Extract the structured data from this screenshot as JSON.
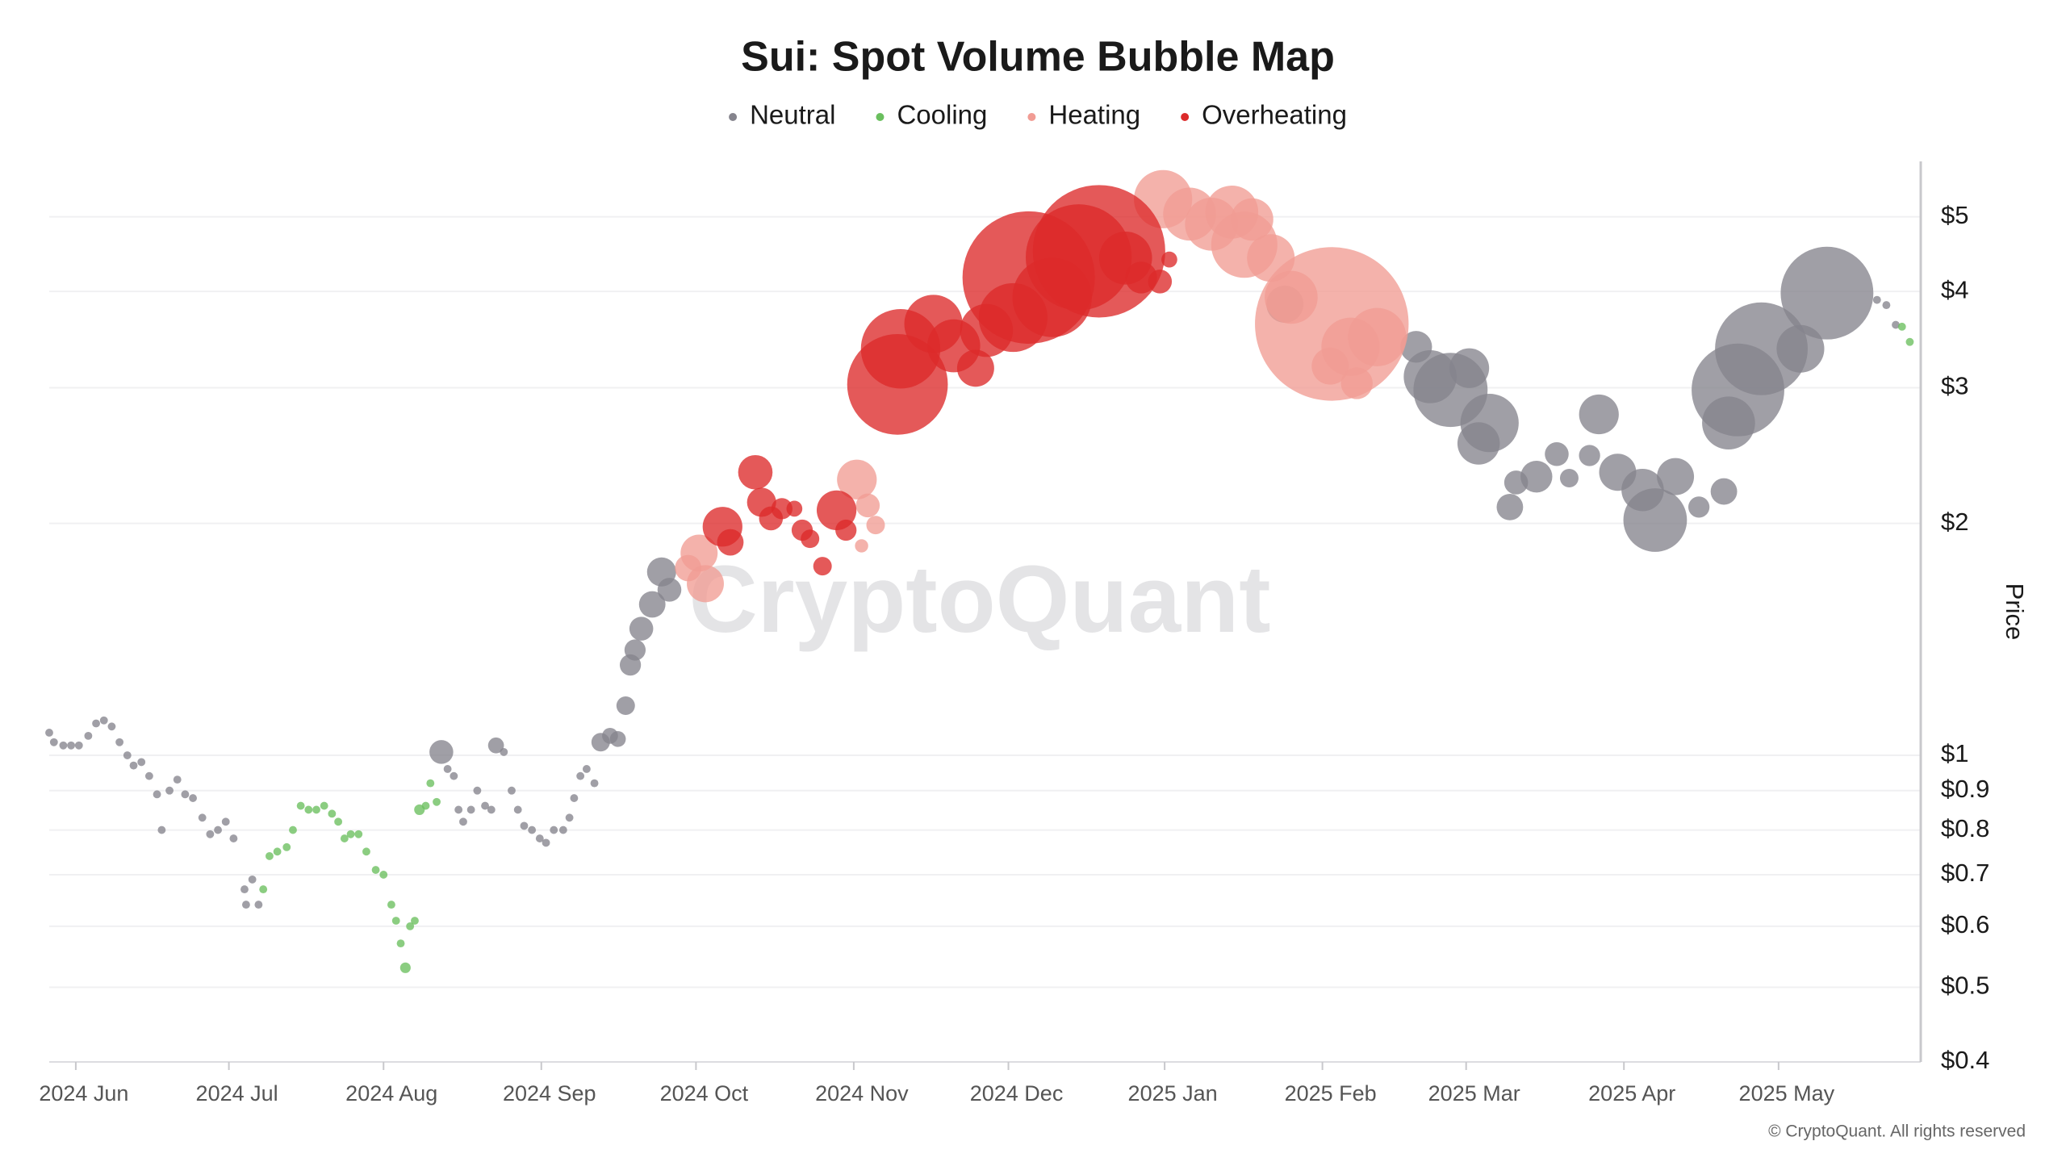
{
  "chart_data": {
    "type": "bubble",
    "title": "Sui: Spot Volume Bubble Map",
    "y_label": "Price",
    "watermark": "CryptoQuant",
    "copyright": "© CryptoQuant. All rights reserved",
    "log_scale": true,
    "grid": true,
    "legend": "top",
    "xlim": [
      -0.17,
      11.81
    ],
    "ylim": [
      0.4,
      5.9
    ],
    "xticks": [
      {
        "value": 0,
        "label": "2024 Jun"
      },
      {
        "value": 0.98,
        "label": "2024 Jul"
      },
      {
        "value": 1.97,
        "label": "2024 Aug"
      },
      {
        "value": 2.98,
        "label": "2024 Sep"
      },
      {
        "value": 3.97,
        "label": "2024 Oct"
      },
      {
        "value": 4.98,
        "label": "2024 Nov"
      },
      {
        "value": 5.97,
        "label": "2024 Dec"
      },
      {
        "value": 6.97,
        "label": "2025 Jan"
      },
      {
        "value": 7.98,
        "label": "2025 Feb"
      },
      {
        "value": 8.9,
        "label": "2025 Mar"
      },
      {
        "value": 9.91,
        "label": "2025 Apr"
      },
      {
        "value": 10.9,
        "label": "2025 May"
      }
    ],
    "yticks": [
      {
        "value": 0.4,
        "label": "$0.4"
      },
      {
        "value": 0.5,
        "label": "$0.5"
      },
      {
        "value": 0.6,
        "label": "$0.6"
      },
      {
        "value": 0.7,
        "label": "$0.7"
      },
      {
        "value": 0.8,
        "label": "$0.8"
      },
      {
        "value": 0.9,
        "label": "$0.9"
      },
      {
        "value": 1,
        "label": "$1"
      },
      {
        "value": 2,
        "label": "$2"
      },
      {
        "value": 3,
        "label": "$3"
      },
      {
        "value": 4,
        "label": "$4"
      },
      {
        "value": 5,
        "label": "$5"
      }
    ],
    "series": [
      {
        "name": "Neutral",
        "color": "#85848d",
        "x": [
          -0.17,
          -0.14,
          -0.08,
          -0.03,
          0.02,
          0.08,
          0.13,
          0.18,
          0.23,
          0.28,
          0.33,
          0.37,
          0.42,
          0.47,
          0.52,
          0.55,
          0.6,
          0.65,
          0.7,
          0.75,
          0.81,
          0.86,
          0.91,
          0.96,
          1.01,
          1.08,
          1.09,
          1.13,
          1.17,
          2.34,
          2.38,
          2.42,
          2.45,
          2.48,
          2.53,
          2.57,
          2.62,
          2.66,
          2.69,
          2.74,
          2.79,
          2.83,
          2.87,
          2.92,
          2.97,
          3.01,
          3.06,
          3.12,
          3.16,
          3.19,
          3.23,
          3.27,
          3.32,
          3.36,
          3.42,
          3.47,
          3.52,
          3.55,
          3.58,
          3.62,
          3.69,
          3.75,
          3.8,
          7.74,
          8.58,
          8.67,
          8.8,
          8.92,
          8.98,
          9.05,
          9.18,
          9.22,
          9.35,
          9.48,
          9.56,
          9.69,
          9.75,
          9.87,
          10.03,
          10.11,
          10.24,
          10.39,
          10.55,
          10.58,
          10.64,
          10.79,
          11.04,
          11.21,
          11.53,
          11.59,
          11.65
        ],
        "values": [
          1.07,
          1.04,
          1.03,
          1.03,
          1.03,
          1.06,
          1.1,
          1.11,
          1.09,
          1.04,
          1.0,
          0.97,
          0.98,
          0.94,
          0.89,
          0.8,
          0.9,
          0.93,
          0.89,
          0.88,
          0.83,
          0.79,
          0.8,
          0.82,
          0.78,
          0.67,
          0.64,
          0.69,
          0.64,
          1.01,
          0.96,
          0.94,
          0.85,
          0.82,
          0.85,
          0.9,
          0.86,
          0.85,
          1.03,
          1.01,
          0.9,
          0.85,
          0.81,
          0.8,
          0.78,
          0.77,
          0.8,
          0.8,
          0.83,
          0.88,
          0.94,
          0.96,
          0.92,
          1.04,
          1.06,
          1.05,
          1.16,
          1.31,
          1.37,
          1.46,
          1.57,
          1.73,
          1.64,
          3.85,
          3.39,
          3.1,
          2.98,
          3.18,
          2.54,
          2.7,
          2.1,
          2.26,
          2.3,
          2.46,
          2.29,
          2.45,
          2.77,
          2.33,
          2.21,
          2.02,
          2.3,
          2.1,
          2.2,
          2.7,
          2.98,
          3.37,
          3.37,
          3.98,
          3.9,
          3.84,
          3.62
        ],
        "sizes": [
          9,
          9,
          9,
          9,
          9,
          9,
          9,
          9,
          9,
          9,
          9,
          9,
          9,
          9,
          9,
          9,
          9,
          9,
          9,
          9,
          9,
          9,
          9,
          9,
          9,
          9,
          9,
          9,
          9,
          81,
          9,
          9,
          9,
          9,
          9,
          9,
          9,
          9,
          36,
          9,
          9,
          9,
          9,
          9,
          9,
          9,
          9,
          9,
          9,
          9,
          9,
          9,
          9,
          49,
          36,
          36,
          49,
          64,
          64,
          81,
          100,
          121,
          81,
          196,
          144,
          400,
          784,
          225,
          256,
          484,
          100,
          81,
          144,
          81,
          49,
          64,
          225,
          196,
          256,
          576,
          196,
          64,
          100,
          400,
          1225,
          1225,
          324,
          1225,
          9,
          9,
          9
        ]
      },
      {
        "name": "Cooling",
        "color": "#6abf5e",
        "x": [
          1.2,
          1.24,
          1.29,
          1.35,
          1.39,
          1.44,
          1.49,
          1.54,
          1.59,
          1.64,
          1.68,
          1.72,
          1.76,
          1.81,
          1.86,
          1.92,
          1.97,
          2.02,
          2.05,
          2.08,
          2.11,
          2.14,
          2.17,
          2.2,
          2.24,
          2.27,
          2.31,
          11.69,
          11.74
        ],
        "values": [
          0.67,
          0.74,
          0.75,
          0.76,
          0.8,
          0.86,
          0.85,
          0.85,
          0.86,
          0.84,
          0.82,
          0.78,
          0.79,
          0.79,
          0.75,
          0.71,
          0.7,
          0.64,
          0.61,
          0.57,
          0.53,
          0.6,
          0.61,
          0.85,
          0.86,
          0.92,
          0.87,
          3.6,
          3.44
        ],
        "sizes": [
          9,
          9,
          9,
          9,
          9,
          9,
          9,
          9,
          9,
          9,
          9,
          9,
          9,
          9,
          9,
          9,
          9,
          9,
          9,
          9,
          16,
          9,
          9,
          16,
          9,
          9,
          9,
          9,
          9
        ]
      },
      {
        "name": "Heating",
        "color": "#f19c94",
        "x": [
          3.92,
          3.99,
          4.03,
          5.0,
          5.03,
          5.07,
          5.12,
          6.96,
          7.13,
          7.27,
          7.4,
          7.48,
          7.53,
          7.65,
          7.78,
          8.03,
          8.04,
          8.16,
          8.2,
          8.33
        ],
        "values": [
          1.75,
          1.83,
          1.67,
          2.28,
          1.87,
          2.11,
          1.99,
          5.27,
          5.04,
          4.89,
          5.07,
          4.6,
          4.96,
          4.42,
          3.93,
          3.2,
          3.63,
          3.39,
          3.04,
          3.49
        ],
        "sizes": [
          100,
          196,
          196,
          225,
          25,
          81,
          49,
          484,
          400,
          400,
          400,
          625,
          256,
          324,
          400,
          196,
          3364,
          484,
          144,
          484
        ]
      },
      {
        "name": "Overheating",
        "color": "#dc2a2a",
        "x": [
          4.14,
          4.19,
          4.35,
          4.39,
          4.45,
          4.52,
          4.6,
          4.65,
          4.7,
          4.78,
          4.87,
          4.93,
          5.26,
          5.28,
          5.49,
          5.62,
          5.76,
          5.83,
          6.0,
          6.1,
          6.25,
          6.42,
          6.55,
          6.72,
          6.82,
          6.94,
          7.0
        ],
        "values": [
          1.98,
          1.89,
          2.33,
          2.13,
          2.03,
          2.09,
          2.09,
          1.96,
          1.91,
          1.76,
          2.08,
          1.96,
          3.03,
          3.37,
          3.63,
          3.4,
          3.18,
          3.56,
          3.7,
          4.17,
          3.93,
          4.43,
          4.51,
          4.42,
          4.17,
          4.12,
          4.4
        ],
        "sizes": [
          225,
          100,
          169,
          121,
          81,
          64,
          36,
          64,
          49,
          49,
          225,
          64,
          1444,
          900,
          484,
          400,
          196,
          400,
          676,
          2500,
          900,
          1600,
          2500,
          400,
          144,
          81,
          36
        ]
      }
    ]
  }
}
